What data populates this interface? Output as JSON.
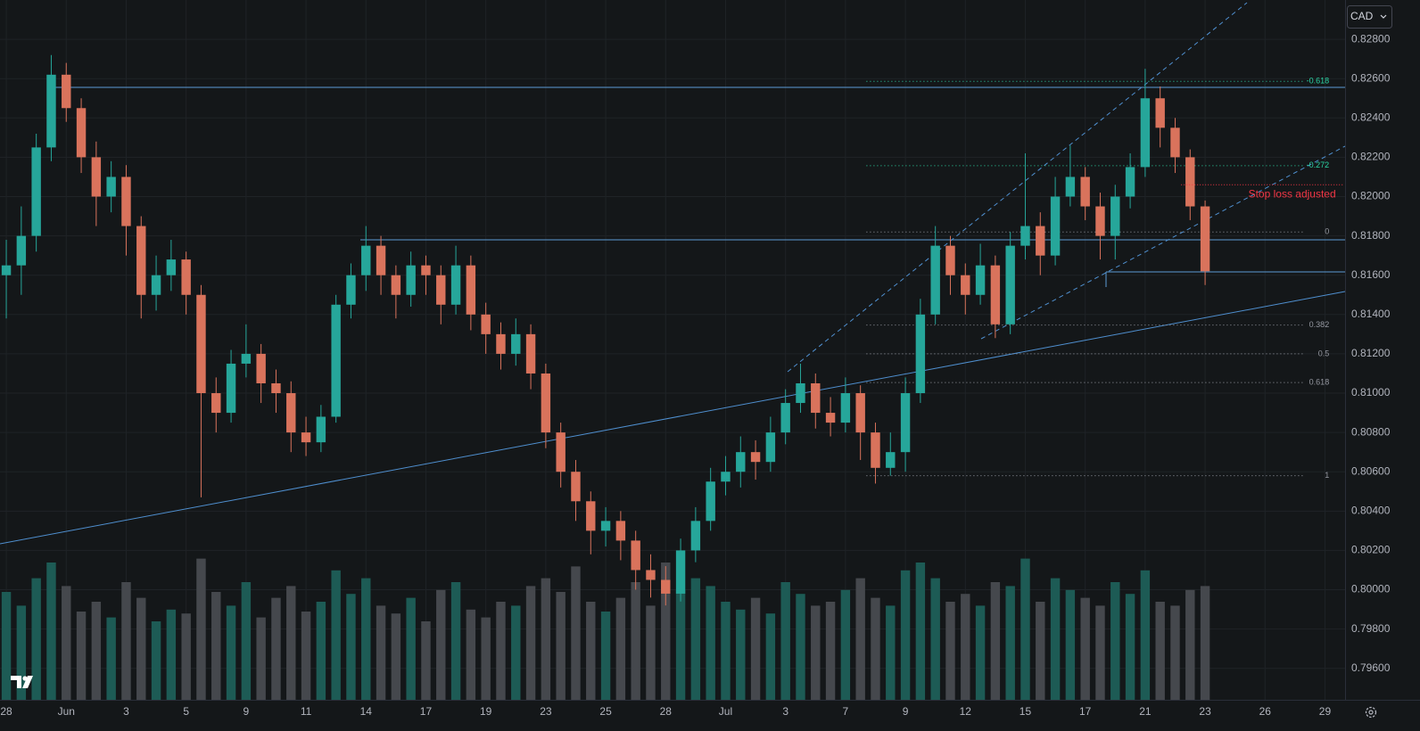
{
  "chart_data": {
    "type": "candlestick",
    "currency": "CAD",
    "up_color": "#26a69a",
    "down_color": "#d9735c",
    "volume_up_color": "#1d5b55",
    "volume_down_color": "#45484d",
    "grid": true,
    "xlim": [
      -0.21,
      44.67
    ],
    "ylim": [
      0.7944,
      0.83
    ],
    "vlim": [
      0,
      100
    ],
    "xticks": [
      {
        "value": 0,
        "label": "28"
      },
      {
        "value": 2,
        "label": "Jun"
      },
      {
        "value": 4,
        "label": "3"
      },
      {
        "value": 6,
        "label": "5"
      },
      {
        "value": 8,
        "label": "9"
      },
      {
        "value": 10,
        "label": "11"
      },
      {
        "value": 12,
        "label": "14"
      },
      {
        "value": 14,
        "label": "17"
      },
      {
        "value": 16,
        "label": "19"
      },
      {
        "value": 18,
        "label": "23"
      },
      {
        "value": 20,
        "label": "25"
      },
      {
        "value": 22,
        "label": "28"
      },
      {
        "value": 24,
        "label": "Jul"
      },
      {
        "value": 26,
        "label": "3"
      },
      {
        "value": 28,
        "label": "7"
      },
      {
        "value": 30,
        "label": "9"
      },
      {
        "value": 32,
        "label": "12"
      },
      {
        "value": 34,
        "label": "15"
      },
      {
        "value": 36,
        "label": "17"
      },
      {
        "value": 38,
        "label": "21"
      },
      {
        "value": 40,
        "label": "23"
      },
      {
        "value": 42,
        "label": "26"
      },
      {
        "value": 44,
        "label": "29"
      }
    ],
    "yticks": [
      {
        "value": 0.796,
        "label": "0.79600"
      },
      {
        "value": 0.798,
        "label": "0.79800"
      },
      {
        "value": 0.8,
        "label": "0.80000"
      },
      {
        "value": 0.802,
        "label": "0.80200"
      },
      {
        "value": 0.804,
        "label": "0.80400"
      },
      {
        "value": 0.806,
        "label": "0.80600"
      },
      {
        "value": 0.808,
        "label": "0.80800"
      },
      {
        "value": 0.81,
        "label": "0.81000"
      },
      {
        "value": 0.812,
        "label": "0.81200"
      },
      {
        "value": 0.814,
        "label": "0.81400"
      },
      {
        "value": 0.816,
        "label": "0.81600"
      },
      {
        "value": 0.818,
        "label": "0.81800"
      },
      {
        "value": 0.82,
        "label": "0.82000"
      },
      {
        "value": 0.822,
        "label": "0.82200"
      },
      {
        "value": 0.824,
        "label": "0.82400"
      },
      {
        "value": 0.826,
        "label": "0.82600"
      },
      {
        "value": 0.828,
        "label": "0.82800"
      }
    ],
    "x": [
      0,
      0.5,
      1,
      1.5,
      2,
      2.5,
      3,
      3.5,
      4,
      4.5,
      5,
      5.5,
      6,
      6.5,
      7,
      7.5,
      8,
      8.5,
      9,
      9.5,
      10,
      10.5,
      11,
      11.5,
      12,
      12.5,
      13,
      13.5,
      14,
      14.5,
      15,
      15.5,
      16,
      16.5,
      17,
      17.5,
      18,
      18.5,
      19,
      19.5,
      20,
      20.5,
      21,
      21.5,
      22,
      22.5,
      23,
      23.5,
      24,
      24.5,
      25,
      25.5,
      26,
      26.5,
      27,
      27.5,
      28,
      28.5,
      29,
      29.5,
      30,
      30.5,
      31,
      31.5,
      32,
      32.5,
      33,
      33.5,
      34,
      34.5,
      35,
      35.5,
      36,
      36.5,
      37,
      37.5,
      38,
      38.5,
      39,
      39.5,
      40
    ],
    "candles": [
      [
        0.816,
        0.8178,
        0.8138,
        0.8165
      ],
      [
        0.8165,
        0.8195,
        0.815,
        0.818
      ],
      [
        0.818,
        0.8232,
        0.8172,
        0.8225
      ],
      [
        0.8225,
        0.8272,
        0.8218,
        0.8262
      ],
      [
        0.8262,
        0.8268,
        0.8238,
        0.8245
      ],
      [
        0.8245,
        0.825,
        0.8212,
        0.822
      ],
      [
        0.822,
        0.8228,
        0.8185,
        0.82
      ],
      [
        0.82,
        0.8218,
        0.8192,
        0.821
      ],
      [
        0.821,
        0.8216,
        0.817,
        0.8185
      ],
      [
        0.8185,
        0.819,
        0.8138,
        0.815
      ],
      [
        0.815,
        0.817,
        0.8142,
        0.816
      ],
      [
        0.816,
        0.8178,
        0.8152,
        0.8168
      ],
      [
        0.8168,
        0.8172,
        0.814,
        0.815
      ],
      [
        0.815,
        0.8155,
        0.8047,
        0.81
      ],
      [
        0.81,
        0.8108,
        0.808,
        0.809
      ],
      [
        0.809,
        0.8122,
        0.8085,
        0.8115
      ],
      [
        0.8115,
        0.8135,
        0.8108,
        0.812
      ],
      [
        0.812,
        0.8125,
        0.8095,
        0.8105
      ],
      [
        0.8105,
        0.8112,
        0.809,
        0.81
      ],
      [
        0.81,
        0.8106,
        0.807,
        0.808
      ],
      [
        0.808,
        0.8088,
        0.8068,
        0.8075
      ],
      [
        0.8075,
        0.8094,
        0.807,
        0.8088
      ],
      [
        0.8088,
        0.815,
        0.8085,
        0.8145
      ],
      [
        0.8145,
        0.8166,
        0.8138,
        0.816
      ],
      [
        0.816,
        0.8185,
        0.8152,
        0.8175
      ],
      [
        0.8175,
        0.818,
        0.815,
        0.816
      ],
      [
        0.816,
        0.8165,
        0.8138,
        0.815
      ],
      [
        0.815,
        0.8172,
        0.8144,
        0.8165
      ],
      [
        0.8165,
        0.817,
        0.815,
        0.816
      ],
      [
        0.816,
        0.8165,
        0.8135,
        0.8145
      ],
      [
        0.8145,
        0.8175,
        0.814,
        0.8165
      ],
      [
        0.8165,
        0.817,
        0.8132,
        0.814
      ],
      [
        0.814,
        0.8146,
        0.812,
        0.813
      ],
      [
        0.813,
        0.8136,
        0.8112,
        0.812
      ],
      [
        0.812,
        0.8138,
        0.8114,
        0.813
      ],
      [
        0.813,
        0.8135,
        0.8102,
        0.811
      ],
      [
        0.811,
        0.8115,
        0.8072,
        0.808
      ],
      [
        0.808,
        0.8085,
        0.8052,
        0.806
      ],
      [
        0.806,
        0.8066,
        0.8035,
        0.8045
      ],
      [
        0.8045,
        0.805,
        0.8018,
        0.803
      ],
      [
        0.803,
        0.8042,
        0.8022,
        0.8035
      ],
      [
        0.8035,
        0.804,
        0.8015,
        0.8025
      ],
      [
        0.8025,
        0.803,
        0.8,
        0.801
      ],
      [
        0.801,
        0.8018,
        0.7996,
        0.8005
      ],
      [
        0.8005,
        0.8012,
        0.7992,
        0.7998
      ],
      [
        0.7998,
        0.8026,
        0.7994,
        0.802
      ],
      [
        0.802,
        0.8042,
        0.8014,
        0.8035
      ],
      [
        0.8035,
        0.8062,
        0.803,
        0.8055
      ],
      [
        0.8055,
        0.8068,
        0.8048,
        0.806
      ],
      [
        0.806,
        0.8078,
        0.8052,
        0.807
      ],
      [
        0.807,
        0.8076,
        0.8056,
        0.8065
      ],
      [
        0.8065,
        0.8088,
        0.806,
        0.808
      ],
      [
        0.808,
        0.8102,
        0.8074,
        0.8095
      ],
      [
        0.8095,
        0.8115,
        0.809,
        0.8105
      ],
      [
        0.8105,
        0.811,
        0.8082,
        0.809
      ],
      [
        0.809,
        0.8098,
        0.8078,
        0.8085
      ],
      [
        0.8085,
        0.8108,
        0.808,
        0.81
      ],
      [
        0.81,
        0.8104,
        0.8066,
        0.808
      ],
      [
        0.808,
        0.8085,
        0.8054,
        0.8062
      ],
      [
        0.8062,
        0.808,
        0.8058,
        0.807
      ],
      [
        0.807,
        0.8108,
        0.806,
        0.81
      ],
      [
        0.81,
        0.8148,
        0.8095,
        0.814
      ],
      [
        0.814,
        0.8185,
        0.8135,
        0.8175
      ],
      [
        0.8175,
        0.818,
        0.815,
        0.816
      ],
      [
        0.816,
        0.8166,
        0.814,
        0.815
      ],
      [
        0.815,
        0.8176,
        0.8145,
        0.8165
      ],
      [
        0.8165,
        0.817,
        0.8128,
        0.8135
      ],
      [
        0.8135,
        0.8182,
        0.813,
        0.8175
      ],
      [
        0.8175,
        0.8222,
        0.8168,
        0.8185
      ],
      [
        0.8185,
        0.8192,
        0.816,
        0.817
      ],
      [
        0.817,
        0.821,
        0.8165,
        0.82
      ],
      [
        0.82,
        0.8226,
        0.8195,
        0.821
      ],
      [
        0.821,
        0.8215,
        0.8188,
        0.8195
      ],
      [
        0.8195,
        0.8202,
        0.8168,
        0.818
      ],
      [
        0.818,
        0.8206,
        0.8168,
        0.82
      ],
      [
        0.82,
        0.8222,
        0.8194,
        0.8215
      ],
      [
        0.8215,
        0.8265,
        0.821,
        0.825
      ],
      [
        0.825,
        0.8256,
        0.8225,
        0.8235
      ],
      [
        0.8235,
        0.824,
        0.8212,
        0.822
      ],
      [
        0.822,
        0.8224,
        0.8188,
        0.8195
      ],
      [
        0.8195,
        0.8198,
        0.8155,
        0.8162
      ]
    ],
    "volume": [
      55,
      48,
      62,
      70,
      58,
      45,
      50,
      42,
      60,
      52,
      40,
      46,
      44,
      72,
      55,
      48,
      60,
      42,
      52,
      58,
      45,
      50,
      66,
      54,
      62,
      48,
      44,
      52,
      40,
      56,
      60,
      46,
      42,
      50,
      48,
      58,
      62,
      55,
      68,
      50,
      45,
      52,
      60,
      48,
      70,
      56,
      62,
      58,
      50,
      46,
      52,
      44,
      60,
      54,
      48,
      50,
      56,
      62,
      52,
      48,
      66,
      70,
      62,
      50,
      54,
      48,
      60,
      58,
      72,
      50,
      62,
      56,
      52,
      48,
      60,
      54,
      66,
      50,
      48,
      56,
      58
    ],
    "fib": {
      "from": 0.8182,
      "to": 0.8058,
      "x": [
        28.7,
        44.2
      ],
      "levels": [
        -0.618,
        -0.272,
        0,
        0.382,
        0.5,
        0.618,
        1
      ],
      "level_colors": [
        "#2bd4a4",
        "#2bd4a4",
        "#9598a1",
        "#9598a1",
        "#9598a1",
        "#9598a1",
        "#9598a1"
      ]
    },
    "annotation": {
      "text": "Stop loss adjusted",
      "price": 0.8206,
      "x": [
        39.2,
        44.6
      ],
      "color": "#f23645"
    }
  }
}
